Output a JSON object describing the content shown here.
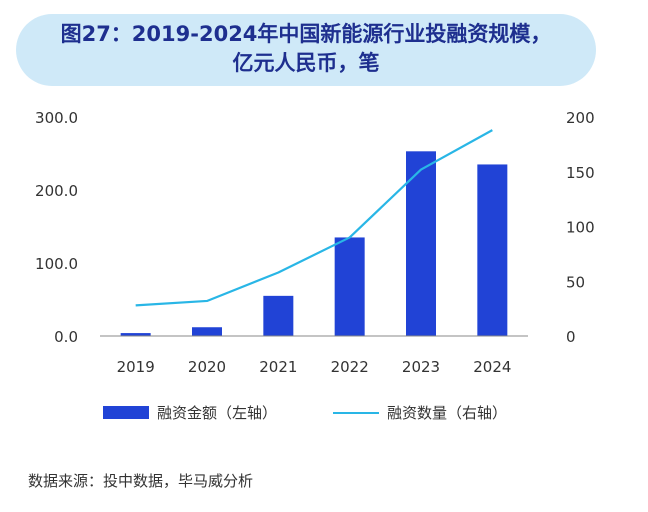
{
  "title": {
    "line1": "图27：2019-2024年中国新能源行业投融资规模，",
    "line2": "亿元人民币，笔"
  },
  "chart_data": {
    "type": "bar+line",
    "categories": [
      "2019",
      "2020",
      "2021",
      "2022",
      "2023",
      "2024"
    ],
    "series": [
      {
        "name": "融资金额（左轴）",
        "type": "bar",
        "axis": "left",
        "values": [
          4,
          12,
          55,
          135,
          253,
          235
        ]
      },
      {
        "name": "融资数量（右轴）",
        "type": "line",
        "axis": "right",
        "values": [
          28,
          32,
          58,
          90,
          152,
          188
        ]
      }
    ],
    "y_left": {
      "min": 0,
      "max": 300,
      "ticks": [
        "0.0",
        "100.0",
        "200.0",
        "300.0"
      ]
    },
    "y_right": {
      "min": 0,
      "max": 200,
      "ticks": [
        "0",
        "50",
        "100",
        "150",
        "200"
      ]
    },
    "colors": {
      "bar": "#2143d6",
      "line": "#29b6e6"
    }
  },
  "source": "数据来源：投中数据，毕马威分析"
}
